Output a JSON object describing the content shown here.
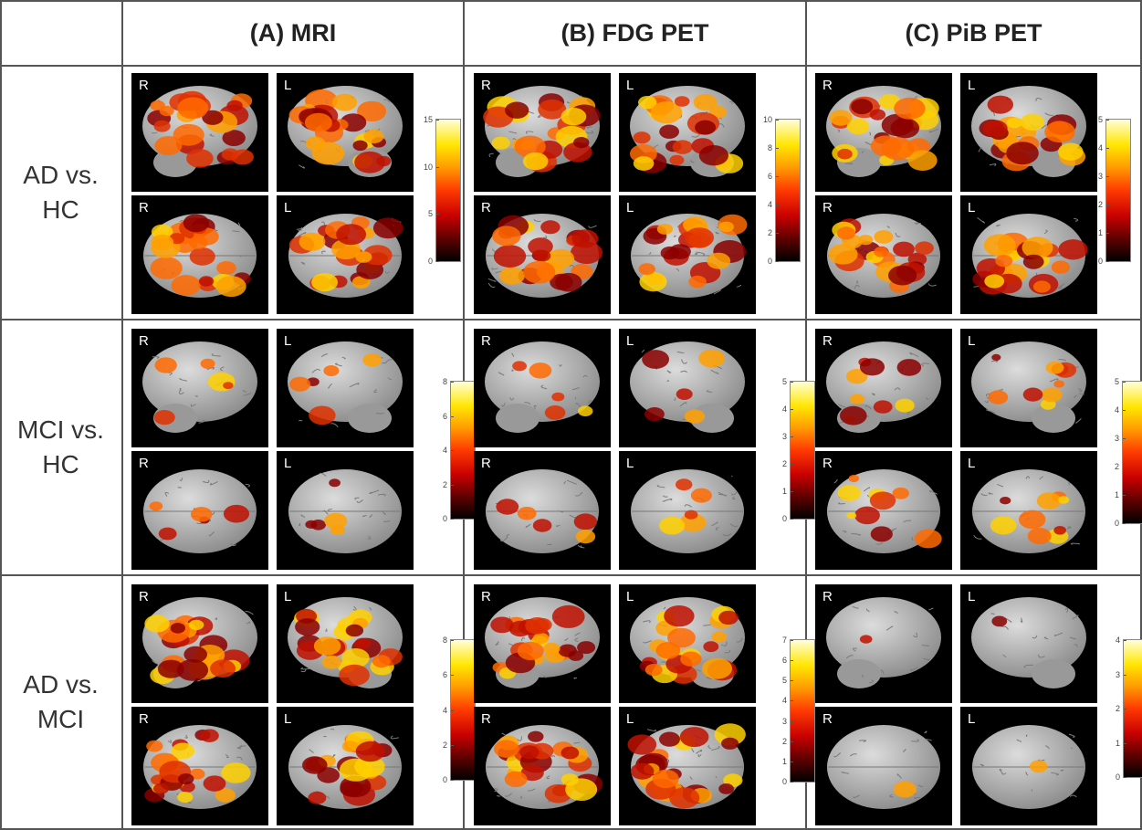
{
  "columns": [
    {
      "title": "(A) MRI"
    },
    {
      "title": "(B) FDG PET"
    },
    {
      "title": "(C) PiB PET"
    }
  ],
  "rows": [
    {
      "label_line1": "AD vs.",
      "label_line2": "HC"
    },
    {
      "label_line1": "MCI vs.",
      "label_line2": "HC"
    },
    {
      "label_line1": "AD vs.",
      "label_line2": "MCI"
    }
  ],
  "hemisphere_labels": {
    "right": "R",
    "left": "L"
  },
  "colorbars": {
    "r0c0": [
      "15",
      "10",
      "5",
      "0"
    ],
    "r0c1": [
      "10",
      "8",
      "6",
      "4",
      "2",
      "0"
    ],
    "r0c2": [
      "5",
      "4",
      "3",
      "2",
      "1",
      "0"
    ],
    "r1c0": [
      "8",
      "6",
      "4",
      "2",
      "0"
    ],
    "r1c1": [
      "5",
      "4",
      "3",
      "2",
      "1",
      "0"
    ],
    "r1c2": [
      "5",
      "4",
      "3",
      "2",
      "1",
      "0"
    ],
    "r2c0": [
      "8",
      "6",
      "4",
      "2",
      "0"
    ],
    "r2c1": [
      "7",
      "6",
      "5",
      "4",
      "3",
      "2",
      "1",
      "0"
    ],
    "r2c2": [
      "4",
      "3",
      "2",
      "1",
      "0"
    ]
  },
  "activation": {
    "r0c0": "high",
    "r0c1": "high",
    "r0c2": "high",
    "r1c0": "low",
    "r1c1": "low",
    "r1c2": "medium",
    "r2c0": "high",
    "r2c1": "high",
    "r2c2": "minimal"
  },
  "colors": {
    "grid": "#555555",
    "panel_bg": "#000000",
    "brain": "#b8b8b8"
  }
}
